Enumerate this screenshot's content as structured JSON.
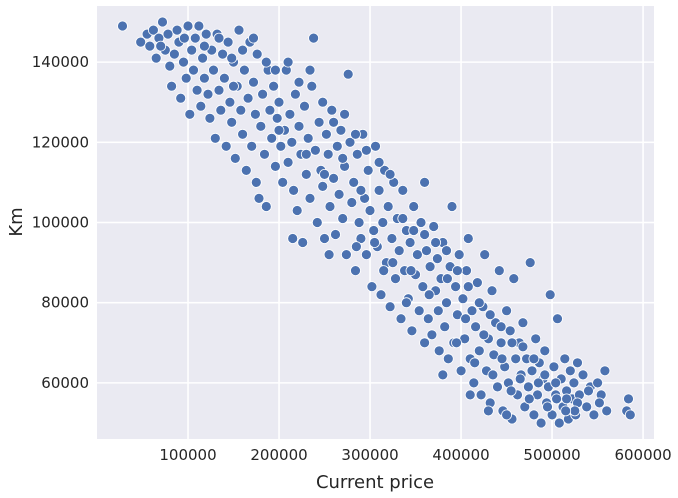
{
  "chart_data": {
    "type": "scatter",
    "title": "",
    "xlabel": "Current price",
    "ylabel": "Km",
    "xlim": [
      0,
      612000
    ],
    "ylim": [
      46000,
      154000
    ],
    "xticks": [
      100000,
      200000,
      300000,
      400000,
      500000,
      600000
    ],
    "yticks": [
      60000,
      80000,
      100000,
      120000,
      140000
    ],
    "xtick_labels": [
      "100000",
      "200000",
      "300000",
      "400000",
      "500000",
      "600000"
    ],
    "ytick_labels": [
      "60000",
      "80000",
      "100000",
      "120000",
      "140000"
    ],
    "grid": true,
    "colors": {
      "background": "#eaeaf2",
      "grid": "#ffffff",
      "point": "#4c72b0",
      "point_edge": "#ffffff",
      "text": "#262626"
    },
    "points": [
      [
        28000,
        149000
      ],
      [
        48000,
        145000
      ],
      [
        55000,
        147000
      ],
      [
        58000,
        144000
      ],
      [
        62000,
        148000
      ],
      [
        65000,
        141000
      ],
      [
        68000,
        146000
      ],
      [
        72000,
        150000
      ],
      [
        75000,
        143000
      ],
      [
        78000,
        147000
      ],
      [
        80000,
        139000
      ],
      [
        82000,
        134000
      ],
      [
        85000,
        142000
      ],
      [
        88000,
        148000
      ],
      [
        90000,
        145000
      ],
      [
        92000,
        131000
      ],
      [
        95000,
        140000
      ],
      [
        98000,
        136000
      ],
      [
        100000,
        149000
      ],
      [
        102000,
        127000
      ],
      [
        104000,
        143000
      ],
      [
        106000,
        138000
      ],
      [
        108000,
        146000
      ],
      [
        110000,
        133000
      ],
      [
        112000,
        149000
      ],
      [
        114000,
        129000
      ],
      [
        116000,
        141000
      ],
      [
        118000,
        136000
      ],
      [
        120000,
        147000
      ],
      [
        122000,
        132000
      ],
      [
        124000,
        126000
      ],
      [
        126000,
        143000
      ],
      [
        128000,
        138000
      ],
      [
        130000,
        121000
      ],
      [
        132000,
        147000
      ],
      [
        134000,
        133000
      ],
      [
        136000,
        128000
      ],
      [
        138000,
        142000
      ],
      [
        140000,
        136000
      ],
      [
        142000,
        119000
      ],
      [
        144000,
        145000
      ],
      [
        146000,
        130000
      ],
      [
        148000,
        125000
      ],
      [
        150000,
        140000
      ],
      [
        152000,
        116000
      ],
      [
        154000,
        134000
      ],
      [
        156000,
        148000
      ],
      [
        158000,
        128000
      ],
      [
        160000,
        122000
      ],
      [
        162000,
        138000
      ],
      [
        164000,
        113000
      ],
      [
        166000,
        131000
      ],
      [
        168000,
        145000
      ],
      [
        170000,
        119000
      ],
      [
        172000,
        135000
      ],
      [
        174000,
        127000
      ],
      [
        176000,
        142000
      ],
      [
        178000,
        106000
      ],
      [
        180000,
        124000
      ],
      [
        182000,
        132000
      ],
      [
        184000,
        117000
      ],
      [
        186000,
        104000
      ],
      [
        188000,
        138000
      ],
      [
        190000,
        128000
      ],
      [
        192000,
        121000
      ],
      [
        194000,
        134000
      ],
      [
        196000,
        114000
      ],
      [
        198000,
        126000
      ],
      [
        200000,
        130000
      ],
      [
        202000,
        119000
      ],
      [
        204000,
        110000
      ],
      [
        206000,
        123000
      ],
      [
        208000,
        138000
      ],
      [
        210000,
        115000
      ],
      [
        212000,
        127000
      ],
      [
        214000,
        120000
      ],
      [
        216000,
        108000
      ],
      [
        218000,
        132000
      ],
      [
        220000,
        103000
      ],
      [
        222000,
        124000
      ],
      [
        224000,
        117000
      ],
      [
        226000,
        95000
      ],
      [
        228000,
        129000
      ],
      [
        230000,
        112000
      ],
      [
        232000,
        121000
      ],
      [
        234000,
        106000
      ],
      [
        236000,
        134000
      ],
      [
        238000,
        146000
      ],
      [
        240000,
        118000
      ],
      [
        242000,
        100000
      ],
      [
        244000,
        125000
      ],
      [
        246000,
        113000
      ],
      [
        248000,
        109000
      ],
      [
        250000,
        96000
      ],
      [
        252000,
        122000
      ],
      [
        254000,
        117000
      ],
      [
        256000,
        104000
      ],
      [
        258000,
        128000
      ],
      [
        260000,
        111000
      ],
      [
        262000,
        97000
      ],
      [
        264000,
        119000
      ],
      [
        266000,
        107000
      ],
      [
        268000,
        123000
      ],
      [
        270000,
        101000
      ],
      [
        272000,
        114000
      ],
      [
        274000,
        92000
      ],
      [
        276000,
        137000
      ],
      [
        278000,
        120000
      ],
      [
        280000,
        105000
      ],
      [
        282000,
        110000
      ],
      [
        284000,
        88000
      ],
      [
        286000,
        117000
      ],
      [
        288000,
        100000
      ],
      [
        290000,
        96000
      ],
      [
        292000,
        122000
      ],
      [
        294000,
        106000
      ],
      [
        296000,
        92000
      ],
      [
        298000,
        113000
      ],
      [
        300000,
        103000
      ],
      [
        302000,
        84000
      ],
      [
        304000,
        98000
      ],
      [
        306000,
        119000
      ],
      [
        308000,
        94000
      ],
      [
        310000,
        108000
      ],
      [
        312000,
        82000
      ],
      [
        314000,
        100000
      ],
      [
        316000,
        113000
      ],
      [
        318000,
        90000
      ],
      [
        320000,
        104000
      ],
      [
        322000,
        79000
      ],
      [
        324000,
        96000
      ],
      [
        326000,
        110000
      ],
      [
        328000,
        86000
      ],
      [
        330000,
        101000
      ],
      [
        332000,
        93000
      ],
      [
        334000,
        76000
      ],
      [
        336000,
        108000
      ],
      [
        338000,
        88000
      ],
      [
        340000,
        98000
      ],
      [
        342000,
        81000
      ],
      [
        344000,
        95000
      ],
      [
        346000,
        73000
      ],
      [
        348000,
        104000
      ],
      [
        350000,
        87000
      ],
      [
        352000,
        92000
      ],
      [
        354000,
        78000
      ],
      [
        356000,
        100000
      ],
      [
        358000,
        84000
      ],
      [
        360000,
        110000
      ],
      [
        362000,
        93000
      ],
      [
        364000,
        76000
      ],
      [
        366000,
        89000
      ],
      [
        368000,
        72000
      ],
      [
        370000,
        99000
      ],
      [
        372000,
        83000
      ],
      [
        374000,
        91000
      ],
      [
        376000,
        68000
      ],
      [
        378000,
        86000
      ],
      [
        380000,
        95000
      ],
      [
        382000,
        74000
      ],
      [
        384000,
        80000
      ],
      [
        386000,
        66000
      ],
      [
        388000,
        89000
      ],
      [
        390000,
        104000
      ],
      [
        392000,
        70000
      ],
      [
        394000,
        84000
      ],
      [
        396000,
        77000
      ],
      [
        398000,
        92000
      ],
      [
        400000,
        63000
      ],
      [
        402000,
        81000
      ],
      [
        404000,
        71000
      ],
      [
        406000,
        88000
      ],
      [
        408000,
        96000
      ],
      [
        410000,
        66000
      ],
      [
        412000,
        78000
      ],
      [
        414000,
        60000
      ],
      [
        416000,
        74000
      ],
      [
        418000,
        85000
      ],
      [
        420000,
        68000
      ],
      [
        422000,
        57000
      ],
      [
        424000,
        79000
      ],
      [
        426000,
        92000
      ],
      [
        428000,
        63000
      ],
      [
        430000,
        71000
      ],
      [
        432000,
        55000
      ],
      [
        434000,
        83000
      ],
      [
        436000,
        67000
      ],
      [
        438000,
        75000
      ],
      [
        440000,
        59000
      ],
      [
        442000,
        88000
      ],
      [
        444000,
        70000
      ],
      [
        446000,
        53000
      ],
      [
        448000,
        64000
      ],
      [
        450000,
        78000
      ],
      [
        452000,
        60000
      ],
      [
        454000,
        73000
      ],
      [
        456000,
        51000
      ],
      [
        458000,
        86000
      ],
      [
        460000,
        66000
      ],
      [
        462000,
        57000
      ],
      [
        464000,
        70000
      ],
      [
        466000,
        62000
      ],
      [
        468000,
        75000
      ],
      [
        470000,
        54000
      ],
      [
        472000,
        66000
      ],
      [
        474000,
        59000
      ],
      [
        476000,
        90000
      ],
      [
        478000,
        63000
      ],
      [
        480000,
        52000
      ],
      [
        482000,
        71000
      ],
      [
        484000,
        57000
      ],
      [
        486000,
        65000
      ],
      [
        488000,
        50000
      ],
      [
        490000,
        61000
      ],
      [
        492000,
        68000
      ],
      [
        494000,
        55000
      ],
      [
        496000,
        59000
      ],
      [
        498000,
        82000
      ],
      [
        500000,
        52000
      ],
      [
        502000,
        64000
      ],
      [
        504000,
        57000
      ],
      [
        506000,
        76000
      ],
      [
        508000,
        50000
      ],
      [
        510000,
        61000
      ],
      [
        512000,
        54000
      ],
      [
        514000,
        66000
      ],
      [
        516000,
        58000
      ],
      [
        518000,
        51000
      ],
      [
        520000,
        63000
      ],
      [
        522000,
        56000
      ],
      [
        524000,
        60000
      ],
      [
        526000,
        52000
      ],
      [
        528000,
        65000
      ],
      [
        530000,
        57000
      ],
      [
        534000,
        62000
      ],
      [
        538000,
        54000
      ],
      [
        542000,
        59000
      ],
      [
        546000,
        52000
      ],
      [
        550000,
        60000
      ],
      [
        554000,
        57000
      ],
      [
        558000,
        63000
      ],
      [
        560000,
        53000
      ],
      [
        582000,
        53000
      ],
      [
        584000,
        56000
      ],
      [
        586000,
        52000
      ],
      [
        70000,
        144000
      ],
      [
        96000,
        146000
      ],
      [
        118000,
        144000
      ],
      [
        134000,
        146000
      ],
      [
        148000,
        141000
      ],
      [
        160000,
        143000
      ],
      [
        172000,
        146000
      ],
      [
        186000,
        140000
      ],
      [
        196000,
        138000
      ],
      [
        210000,
        140000
      ],
      [
        222000,
        135000
      ],
      [
        234000,
        138000
      ],
      [
        248000,
        130000
      ],
      [
        260000,
        125000
      ],
      [
        272000,
        127000
      ],
      [
        284000,
        122000
      ],
      [
        296000,
        118000
      ],
      [
        310000,
        115000
      ],
      [
        322000,
        112000
      ],
      [
        336000,
        101000
      ],
      [
        348000,
        98000
      ],
      [
        360000,
        97000
      ],
      [
        372000,
        95000
      ],
      [
        384000,
        93000
      ],
      [
        396000,
        88000
      ],
      [
        408000,
        84000
      ],
      [
        420000,
        80000
      ],
      [
        432000,
        77000
      ],
      [
        444000,
        74000
      ],
      [
        456000,
        70000
      ],
      [
        468000,
        69000
      ],
      [
        480000,
        66000
      ],
      [
        492000,
        62000
      ],
      [
        504000,
        60000
      ],
      [
        516000,
        56000
      ],
      [
        528000,
        55000
      ],
      [
        540000,
        58000
      ],
      [
        552000,
        55000
      ],
      [
        150000,
        134000
      ],
      [
        200000,
        123000
      ],
      [
        230000,
        117000
      ],
      [
        250000,
        112000
      ],
      [
        270000,
        116000
      ],
      [
        290000,
        108000
      ],
      [
        305000,
        95000
      ],
      [
        325000,
        90000
      ],
      [
        345000,
        88000
      ],
      [
        365000,
        82000
      ],
      [
        385000,
        86000
      ],
      [
        405000,
        76000
      ],
      [
        425000,
        72000
      ],
      [
        445000,
        66000
      ],
      [
        465000,
        61000
      ],
      [
        485000,
        60000
      ],
      [
        505000,
        56000
      ],
      [
        525000,
        53000
      ],
      [
        175000,
        110000
      ],
      [
        215000,
        96000
      ],
      [
        255000,
        92000
      ],
      [
        285000,
        94000
      ],
      [
        315000,
        88000
      ],
      [
        340000,
        80000
      ],
      [
        375000,
        78000
      ],
      [
        395000,
        70000
      ],
      [
        415000,
        65000
      ],
      [
        435000,
        62000
      ],
      [
        455000,
        58000
      ],
      [
        475000,
        56000
      ],
      [
        495000,
        54000
      ],
      [
        515000,
        53000
      ],
      [
        380000,
        62000
      ],
      [
        360000,
        70000
      ],
      [
        410000,
        57000
      ],
      [
        430000,
        53000
      ],
      [
        450000,
        52000
      ]
    ]
  }
}
